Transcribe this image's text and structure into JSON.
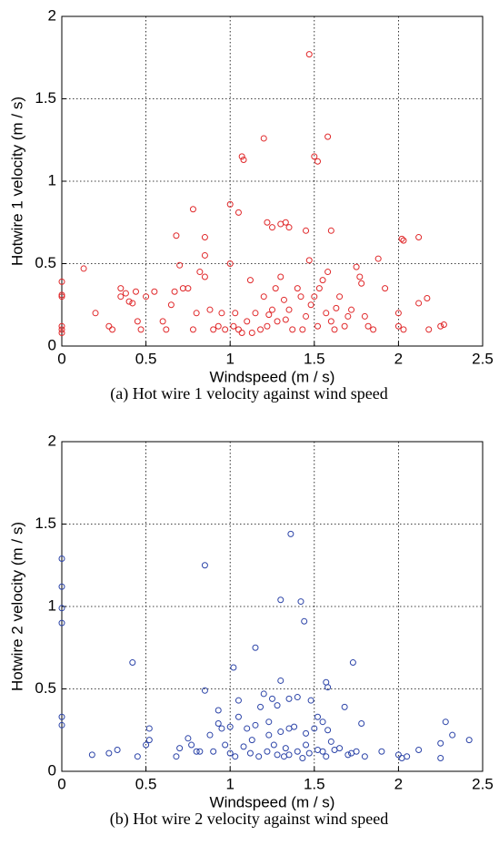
{
  "chart_data": [
    {
      "type": "scatter",
      "title": "(a) Hot wire 1 velocity against wind speed",
      "xlabel": "Windspeed (m / s)",
      "ylabel": "Hotwire 1 velocity (m / s)",
      "color": "#e0282a",
      "grid": true,
      "xlim": [
        0,
        2.5
      ],
      "xticks": [
        0,
        0.5,
        1,
        1.5,
        2,
        2.5
      ],
      "ylim": [
        0,
        2
      ],
      "yticks": [
        0,
        0.5,
        1,
        1.5,
        2
      ],
      "x": [
        1.47,
        1.2,
        1.58,
        1.07,
        1.08,
        1.5,
        1.52,
        1.0,
        1.05,
        0.78,
        1.22,
        1.25,
        1.3,
        1.33,
        1.35,
        1.45,
        1.6,
        2.02,
        2.03,
        2.12,
        0.68,
        0.85,
        0,
        0,
        0,
        0,
        0,
        0,
        0.13,
        0.2,
        0.35,
        0.35,
        0.38,
        0.4,
        0.42,
        0.44,
        0.5,
        0.55,
        0.45,
        0.47,
        0.3,
        0.28,
        0.6,
        0.62,
        0.65,
        0.67,
        0.7,
        0.72,
        0.75,
        0.78,
        0.8,
        0.82,
        0.85,
        0.85,
        0.9,
        0.95,
        1.0,
        1.02,
        1.03,
        1.05,
        1.07,
        1.1,
        1.12,
        1.15,
        1.18,
        1.2,
        1.22,
        1.25,
        1.27,
        1.28,
        1.3,
        1.32,
        1.35,
        1.37,
        1.4,
        1.42,
        1.45,
        1.47,
        1.48,
        1.5,
        1.52,
        1.55,
        1.57,
        1.58,
        1.6,
        1.62,
        1.65,
        1.68,
        1.7,
        1.72,
        1.75,
        1.77,
        1.78,
        1.8,
        1.82,
        1.85,
        1.88,
        1.92,
        2.0,
        2.0,
        2.03,
        2.12,
        2.17,
        2.18,
        2.25,
        2.27,
        0.97,
        0.93,
        0.88,
        1.13,
        1.23,
        1.33,
        1.43,
        1.53,
        1.63
      ],
      "values": [
        1.77,
        1.26,
        1.27,
        1.15,
        1.13,
        1.15,
        1.12,
        0.86,
        0.81,
        0.83,
        0.75,
        0.72,
        0.74,
        0.75,
        0.72,
        0.7,
        0.7,
        0.65,
        0.64,
        0.66,
        0.67,
        0.66,
        0.39,
        0.31,
        0.3,
        0.12,
        0.1,
        0.08,
        0.47,
        0.2,
        0.35,
        0.3,
        0.32,
        0.27,
        0.26,
        0.33,
        0.3,
        0.33,
        0.15,
        0.1,
        0.1,
        0.12,
        0.15,
        0.1,
        0.25,
        0.33,
        0.49,
        0.35,
        0.35,
        0.1,
        0.2,
        0.45,
        0.42,
        0.55,
        0.1,
        0.2,
        0.5,
        0.12,
        0.2,
        0.1,
        0.08,
        0.15,
        0.4,
        0.2,
        0.1,
        0.3,
        0.12,
        0.22,
        0.35,
        0.15,
        0.42,
        0.28,
        0.22,
        0.1,
        0.35,
        0.3,
        0.18,
        0.52,
        0.25,
        0.3,
        0.12,
        0.4,
        0.2,
        0.45,
        0.15,
        0.1,
        0.3,
        0.12,
        0.18,
        0.22,
        0.48,
        0.42,
        0.38,
        0.18,
        0.12,
        0.1,
        0.53,
        0.35,
        0.2,
        0.12,
        0.1,
        0.26,
        0.29,
        0.1,
        0.12,
        0.13,
        0.1,
        0.12,
        0.22,
        0.08,
        0.19,
        0.16,
        0.1,
        0.35,
        0.23
      ]
    },
    {
      "type": "scatter",
      "title": "(b) Hot wire 2 velocity against wind speed",
      "xlabel": "Windspeed (m / s)",
      "ylabel": "Hotwire 2 velocity (m / s)",
      "color": "#2c44a8",
      "grid": true,
      "xlim": [
        0,
        2.5
      ],
      "xticks": [
        0,
        0.5,
        1,
        1.5,
        2,
        2.5
      ],
      "ylim": [
        0,
        2
      ],
      "yticks": [
        0,
        0.5,
        1,
        1.5,
        2
      ],
      "x": [
        1.36,
        0.85,
        1.3,
        1.42,
        1.44,
        0,
        0,
        0,
        0,
        0,
        0,
        0.42,
        1.15,
        1.73,
        1.02,
        1.3,
        1.57,
        1.58,
        0.85,
        1.2,
        1.25,
        1.28,
        1.35,
        1.4,
        1.48,
        1.68,
        1.18,
        1.05,
        0.93,
        0.93,
        0.95,
        1.0,
        1.05,
        1.1,
        1.15,
        1.23,
        1.3,
        1.35,
        1.38,
        1.45,
        1.5,
        1.52,
        1.55,
        1.58,
        1.78,
        2.28,
        2.32,
        2.42,
        2.25,
        0.18,
        0.28,
        0.33,
        0.45,
        0.5,
        0.52,
        0.52,
        0.68,
        0.7,
        0.75,
        0.77,
        0.8,
        0.82,
        0.9,
        0.97,
        1.0,
        1.03,
        1.08,
        1.12,
        1.17,
        1.22,
        1.26,
        1.28,
        1.32,
        1.35,
        1.4,
        1.43,
        1.47,
        1.52,
        1.55,
        1.57,
        1.62,
        1.65,
        1.7,
        1.75,
        1.8,
        1.9,
        2.0,
        2.02,
        2.05,
        2.12,
        2.25,
        1.45,
        1.6,
        1.72,
        0.88,
        1.13,
        1.33,
        1.23
      ],
      "values": [
        1.44,
        1.25,
        1.04,
        1.03,
        0.91,
        1.29,
        1.12,
        0.99,
        0.9,
        0.33,
        0.28,
        0.66,
        0.75,
        0.66,
        0.63,
        0.55,
        0.54,
        0.51,
        0.49,
        0.47,
        0.44,
        0.4,
        0.44,
        0.45,
        0.43,
        0.39,
        0.39,
        0.43,
        0.37,
        0.29,
        0.26,
        0.27,
        0.33,
        0.26,
        0.28,
        0.3,
        0.24,
        0.26,
        0.27,
        0.23,
        0.26,
        0.33,
        0.3,
        0.25,
        0.29,
        0.3,
        0.22,
        0.19,
        0.17,
        0.1,
        0.11,
        0.13,
        0.09,
        0.16,
        0.26,
        0.19,
        0.09,
        0.14,
        0.2,
        0.16,
        0.12,
        0.12,
        0.12,
        0.16,
        0.11,
        0.09,
        0.15,
        0.11,
        0.09,
        0.12,
        0.16,
        0.1,
        0.09,
        0.1,
        0.12,
        0.08,
        0.11,
        0.13,
        0.12,
        0.09,
        0.13,
        0.14,
        0.1,
        0.12,
        0.09,
        0.12,
        0.1,
        0.08,
        0.09,
        0.13,
        0.08,
        0.16,
        0.18,
        0.11,
        0.22,
        0.19,
        0.14,
        0.22
      ]
    }
  ]
}
